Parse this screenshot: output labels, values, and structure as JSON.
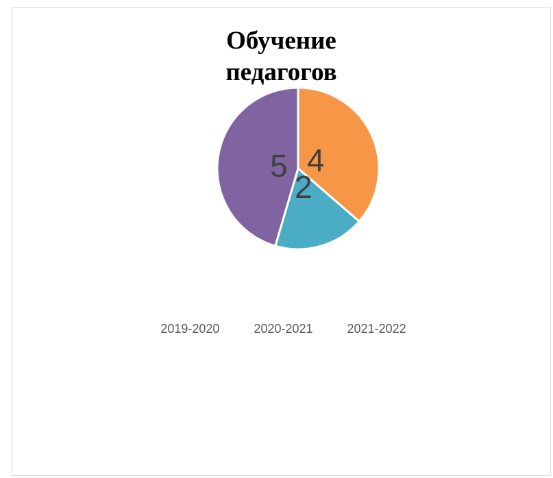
{
  "chart_data": {
    "type": "pie",
    "title": [
      "Обучение",
      "педагогов"
    ],
    "categories": [
      "2019-2020",
      "2020-2021",
      "2021-2022"
    ],
    "values": [
      4,
      2,
      5
    ],
    "data_labels": [
      "4",
      "2",
      "5"
    ],
    "colors": [
      "#f79646",
      "#4bacc6",
      "#8064a2"
    ],
    "legend": "bottom",
    "data_label_color": "#404040",
    "slice_border_color": "#ffffff"
  }
}
